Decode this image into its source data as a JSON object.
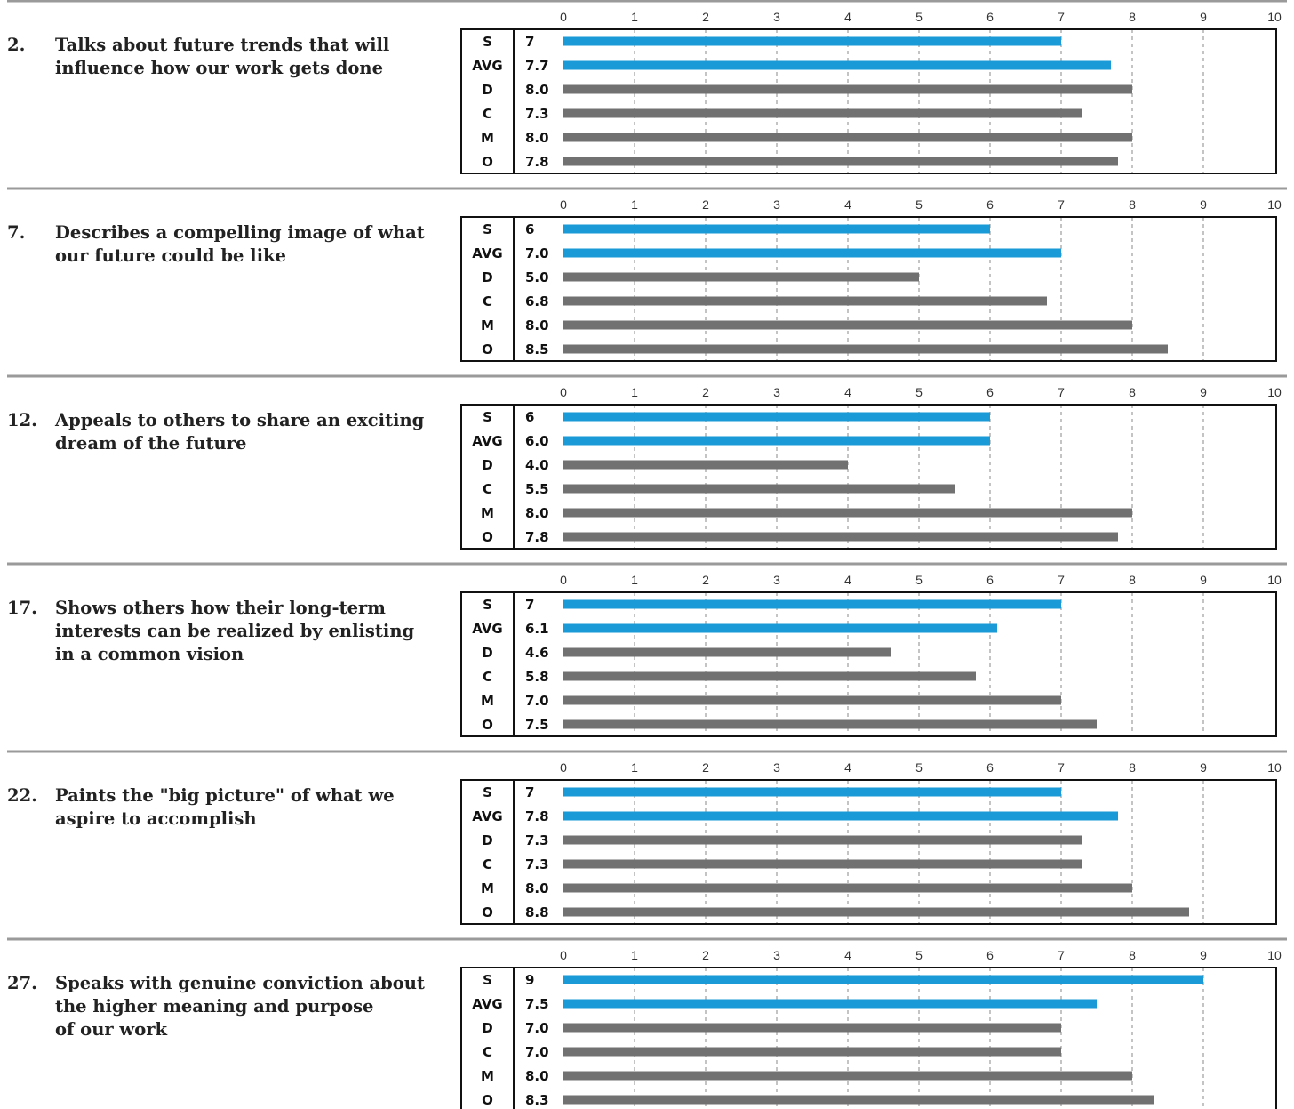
{
  "colors": {
    "self": "#1a9ad7",
    "others": "#717171",
    "separator": "#9a9a9a",
    "grid": "#888888",
    "frame": "#111111"
  },
  "chart_data": [
    {
      "type": "bar",
      "orientation": "horizontal",
      "question_number": "2.",
      "question_lines": [
        "Talks about future trends that will",
        "influence how our work gets done"
      ],
      "categories": [
        "S",
        "AVG",
        "D",
        "C",
        "M",
        "O"
      ],
      "value_labels": [
        "7",
        "7.7",
        "8.0",
        "7.3",
        "8.0",
        "7.8"
      ],
      "values": [
        7,
        7.7,
        8.0,
        7.3,
        8.0,
        7.8
      ],
      "xlim": [
        0,
        10
      ],
      "ticks": [
        0,
        1,
        2,
        3,
        4,
        5,
        6,
        7,
        8,
        9,
        10
      ],
      "grid": true
    },
    {
      "type": "bar",
      "orientation": "horizontal",
      "question_number": "7.",
      "question_lines": [
        "Describes a compelling image of what",
        "our future could be like"
      ],
      "categories": [
        "S",
        "AVG",
        "D",
        "C",
        "M",
        "O"
      ],
      "value_labels": [
        "6",
        "7.0",
        "5.0",
        "6.8",
        "8.0",
        "8.5"
      ],
      "values": [
        6,
        7.0,
        5.0,
        6.8,
        8.0,
        8.5
      ],
      "xlim": [
        0,
        10
      ],
      "ticks": [
        0,
        1,
        2,
        3,
        4,
        5,
        6,
        7,
        8,
        9,
        10
      ],
      "grid": true
    },
    {
      "type": "bar",
      "orientation": "horizontal",
      "question_number": "12.",
      "question_lines": [
        "Appeals to others to share an exciting",
        "dream of the future"
      ],
      "categories": [
        "S",
        "AVG",
        "D",
        "C",
        "M",
        "O"
      ],
      "value_labels": [
        "6",
        "6.0",
        "4.0",
        "5.5",
        "8.0",
        "7.8"
      ],
      "values": [
        6,
        6.0,
        4.0,
        5.5,
        8.0,
        7.8
      ],
      "xlim": [
        0,
        10
      ],
      "ticks": [
        0,
        1,
        2,
        3,
        4,
        5,
        6,
        7,
        8,
        9,
        10
      ],
      "grid": true
    },
    {
      "type": "bar",
      "orientation": "horizontal",
      "question_number": "17.",
      "question_lines": [
        "Shows others how their long-term",
        "interests can be realized by enlisting",
        "in a common vision"
      ],
      "categories": [
        "S",
        "AVG",
        "D",
        "C",
        "M",
        "O"
      ],
      "value_labels": [
        "7",
        "6.1",
        "4.6",
        "5.8",
        "7.0",
        "7.5"
      ],
      "values": [
        7,
        6.1,
        4.6,
        5.8,
        7.0,
        7.5
      ],
      "xlim": [
        0,
        10
      ],
      "ticks": [
        0,
        1,
        2,
        3,
        4,
        5,
        6,
        7,
        8,
        9,
        10
      ],
      "grid": true
    },
    {
      "type": "bar",
      "orientation": "horizontal",
      "question_number": "22.",
      "question_lines": [
        "Paints the \"big picture\" of what we",
        "aspire to accomplish"
      ],
      "categories": [
        "S",
        "AVG",
        "D",
        "C",
        "M",
        "O"
      ],
      "value_labels": [
        "7",
        "7.8",
        "7.3",
        "7.3",
        "8.0",
        "8.8"
      ],
      "values": [
        7,
        7.8,
        7.3,
        7.3,
        8.0,
        8.8
      ],
      "xlim": [
        0,
        10
      ],
      "ticks": [
        0,
        1,
        2,
        3,
        4,
        5,
        6,
        7,
        8,
        9,
        10
      ],
      "grid": true
    },
    {
      "type": "bar",
      "orientation": "horizontal",
      "question_number": "27.",
      "question_lines": [
        "Speaks with genuine conviction about",
        "the higher meaning and purpose",
        "of our work"
      ],
      "categories": [
        "S",
        "AVG",
        "D",
        "C",
        "M",
        "O"
      ],
      "value_labels": [
        "9",
        "7.5",
        "7.0",
        "7.0",
        "8.0",
        "8.3"
      ],
      "values": [
        9,
        7.5,
        7.0,
        7.0,
        8.0,
        8.3
      ],
      "xlim": [
        0,
        10
      ],
      "ticks": [
        0,
        1,
        2,
        3,
        4,
        5,
        6,
        7,
        8,
        9,
        10
      ],
      "grid": true
    }
  ]
}
